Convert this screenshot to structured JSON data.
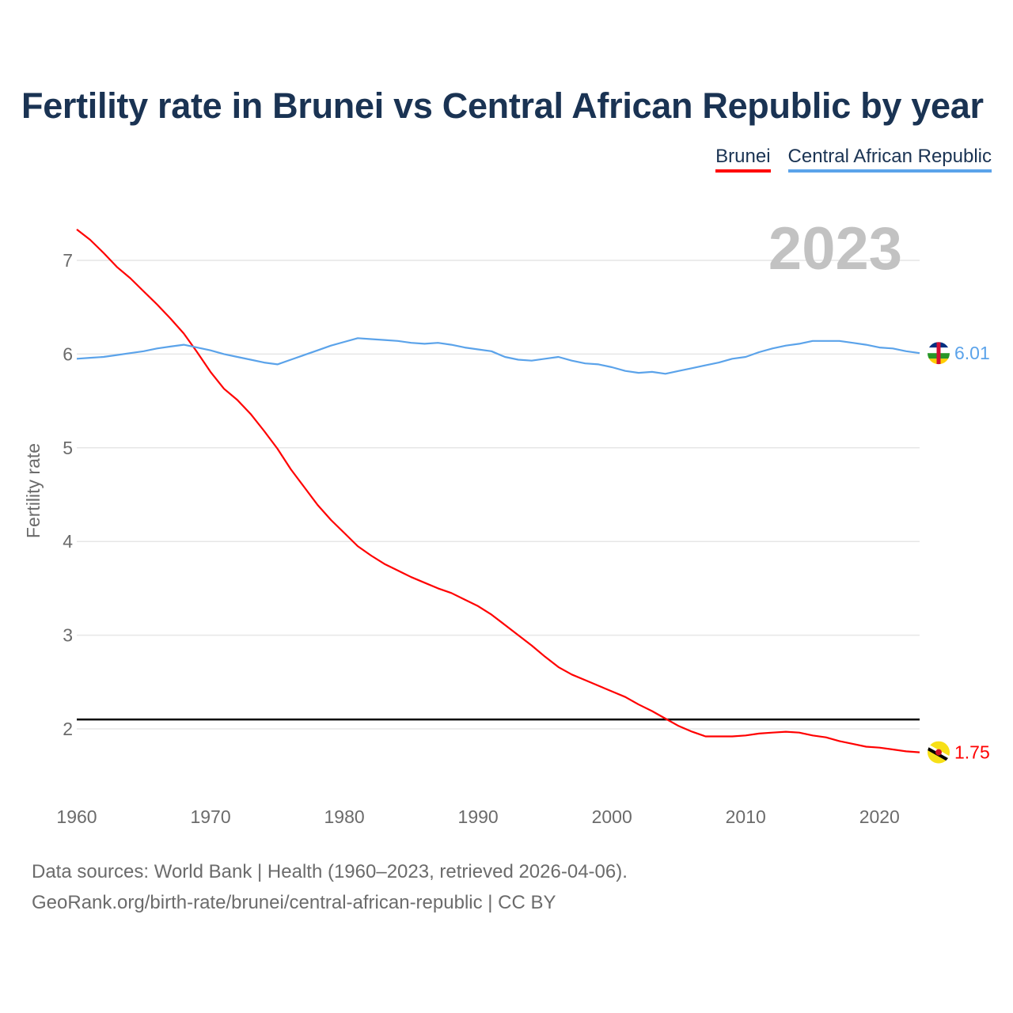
{
  "title": "Fertility rate in Brunei vs Central African Republic by year",
  "footer": {
    "line1": "Data sources: World Bank | Health (1960–2023, retrieved 2026-04-06).",
    "line2": "GeoRank.org/birth-rate/brunei/central-african-republic | CC BY"
  },
  "chart_data": {
    "type": "line",
    "title": "Fertility rate in Brunei vs Central African Republic by year",
    "xlabel": "",
    "ylabel": "Fertility rate",
    "year_watermark": "2023",
    "xlim": [
      1960,
      2023
    ],
    "ylim": [
      1.35,
      7.45
    ],
    "x_ticks": [
      1960,
      1970,
      1980,
      1990,
      2000,
      2010,
      2020
    ],
    "y_ticks": [
      2,
      3,
      4,
      5,
      6,
      7
    ],
    "grid": true,
    "legend_position": "top-right",
    "reference_line": {
      "value": 2.1,
      "color": "#000000"
    },
    "x_start": 1960,
    "series": [
      {
        "name": "Brunei",
        "color": "#ff0000",
        "end_label": "1.75",
        "flag": "brunei-flag-icon",
        "values": [
          7.33,
          7.22,
          7.08,
          6.93,
          6.81,
          6.67,
          6.53,
          6.38,
          6.22,
          6.02,
          5.81,
          5.63,
          5.51,
          5.36,
          5.18,
          4.99,
          4.77,
          4.58,
          4.39,
          4.23,
          4.09,
          3.95,
          3.85,
          3.76,
          3.69,
          3.62,
          3.56,
          3.5,
          3.45,
          3.38,
          3.31,
          3.22,
          3.11,
          3.0,
          2.89,
          2.77,
          2.66,
          2.58,
          2.52,
          2.46,
          2.4,
          2.34,
          2.26,
          2.19,
          2.11,
          2.03,
          1.97,
          1.92,
          1.92,
          1.92,
          1.93,
          1.95,
          1.96,
          1.97,
          1.96,
          1.93,
          1.91,
          1.87,
          1.84,
          1.81,
          1.8,
          1.78,
          1.76,
          1.75
        ]
      },
      {
        "name": "Central African Republic",
        "color": "#5ba3ea",
        "end_label": "6.01",
        "flag": "central-african-republic-flag-icon",
        "values": [
          5.95,
          5.96,
          5.97,
          5.99,
          6.01,
          6.03,
          6.06,
          6.08,
          6.1,
          6.07,
          6.04,
          6.0,
          5.97,
          5.94,
          5.91,
          5.89,
          5.94,
          5.99,
          6.04,
          6.09,
          6.13,
          6.17,
          6.16,
          6.15,
          6.14,
          6.12,
          6.11,
          6.12,
          6.1,
          6.07,
          6.05,
          6.03,
          5.97,
          5.94,
          5.93,
          5.95,
          5.97,
          5.93,
          5.9,
          5.89,
          5.86,
          5.82,
          5.8,
          5.81,
          5.79,
          5.82,
          5.85,
          5.88,
          5.91,
          5.95,
          5.97,
          6.02,
          6.06,
          6.09,
          6.11,
          6.14,
          6.14,
          6.14,
          6.12,
          6.1,
          6.07,
          6.06,
          6.03,
          6.01
        ]
      }
    ]
  }
}
